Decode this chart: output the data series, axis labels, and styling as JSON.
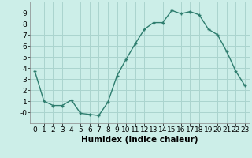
{
  "x": [
    0,
    1,
    2,
    3,
    4,
    5,
    6,
    7,
    8,
    9,
    10,
    11,
    12,
    13,
    14,
    15,
    16,
    17,
    18,
    19,
    20,
    21,
    22,
    23
  ],
  "y": [
    3.7,
    1.0,
    0.6,
    0.6,
    1.1,
    -0.1,
    -0.2,
    -0.3,
    0.9,
    3.3,
    4.8,
    6.2,
    7.5,
    8.1,
    8.1,
    9.2,
    8.9,
    9.1,
    8.8,
    7.5,
    7.0,
    5.5,
    3.7,
    2.4
  ],
  "line_color": "#2e7d6e",
  "marker": "+",
  "bg_color": "#cceee8",
  "grid_color": "#aad4ce",
  "xlabel": "Humidex (Indice chaleur)",
  "xlim": [
    -0.5,
    23.5
  ],
  "ylim": [
    -1.0,
    10.0
  ],
  "yticks": [
    0,
    1,
    2,
    3,
    4,
    5,
    6,
    7,
    8,
    9
  ],
  "ytick_labels": [
    "-0",
    "1",
    "2",
    "3",
    "4",
    "5",
    "6",
    "7",
    "8",
    "9"
  ],
  "xticks": [
    0,
    1,
    2,
    3,
    4,
    5,
    6,
    7,
    8,
    9,
    10,
    11,
    12,
    13,
    14,
    15,
    16,
    17,
    18,
    19,
    20,
    21,
    22,
    23
  ],
  "xlabel_fontsize": 7.5,
  "tick_fontsize": 6.5,
  "line_width": 1.0,
  "marker_size": 3.5
}
